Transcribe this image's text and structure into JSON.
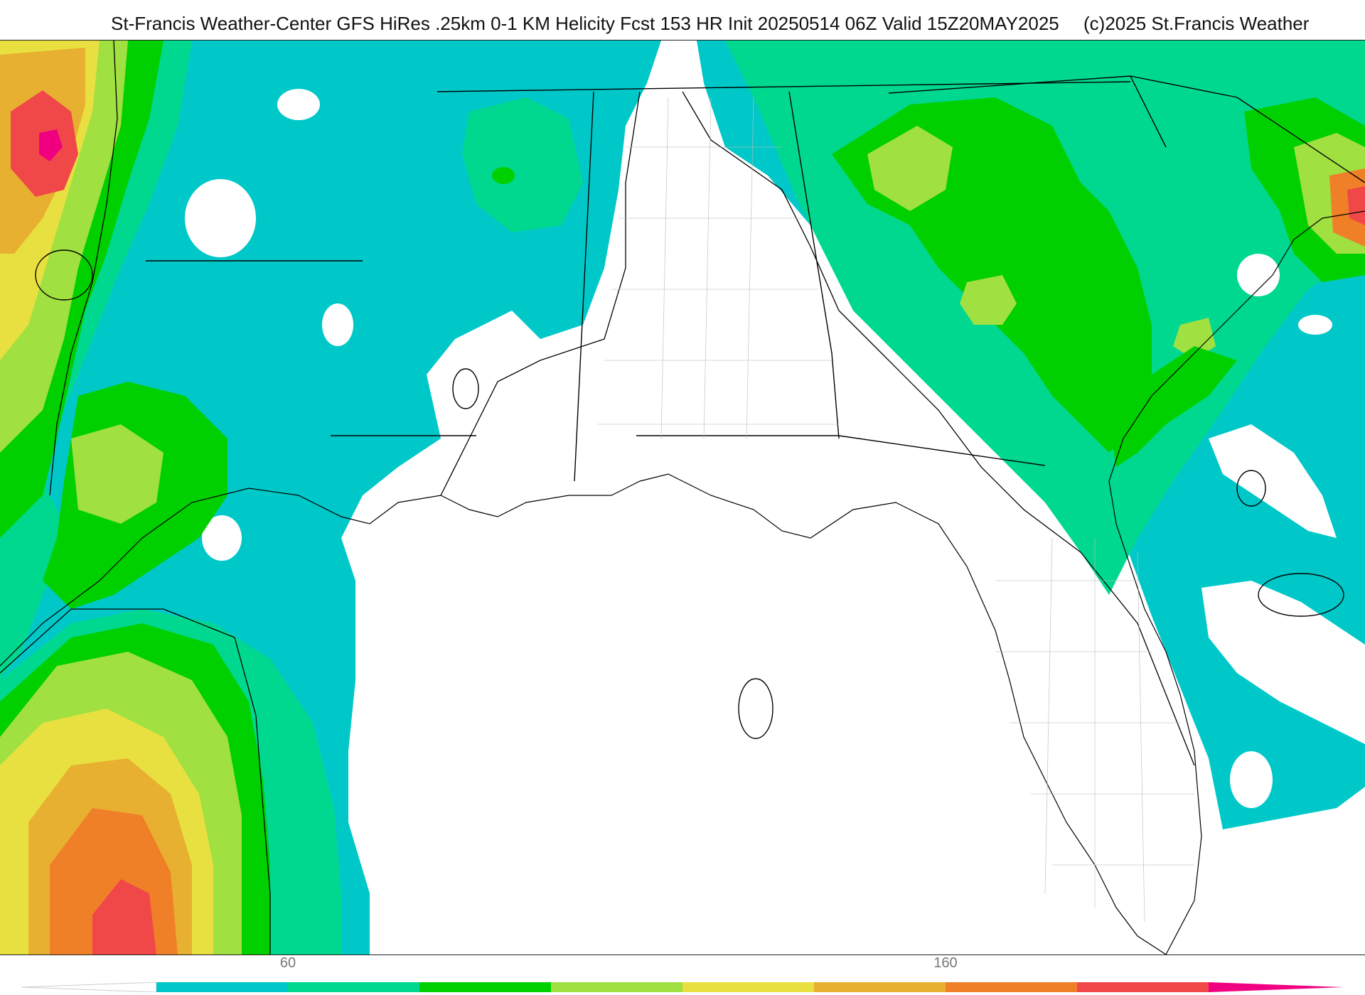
{
  "header": {
    "title": "St-Francis Weather-Center GFS HiRes .25km 0-1 KM Helicity Fcst 153 HR Init 20250514 06Z  Valid 15Z20MAY2025",
    "copyright": "(c)2025 St.Francis Weather"
  },
  "colorbar": {
    "ticks": [
      {
        "label": "60",
        "value": 60
      },
      {
        "label": "160",
        "value": 160
      }
    ],
    "value_min": 40,
    "value_step": 20,
    "colors": [
      "#00c8c8",
      "#00d890",
      "#00d000",
      "#a0e040",
      "#e8e040",
      "#e8b030",
      "#f08028",
      "#f04848",
      "#f00080"
    ]
  },
  "palette": {
    "cyan": "#00c8c8",
    "teal_green": "#00d890",
    "green": "#00d000",
    "yellow_green": "#a0e040",
    "yellow": "#e8e040",
    "orange_yellow": "#e8b030",
    "orange": "#f08028",
    "red": "#f04848",
    "magenta": "#f00080",
    "land_white": "#ffffff",
    "boundary": "#000000",
    "county": "#bdbdbd"
  },
  "map": {
    "field": "0-1 KM Helicity",
    "region": "Southeastern United States and Gulf of Mexico"
  }
}
